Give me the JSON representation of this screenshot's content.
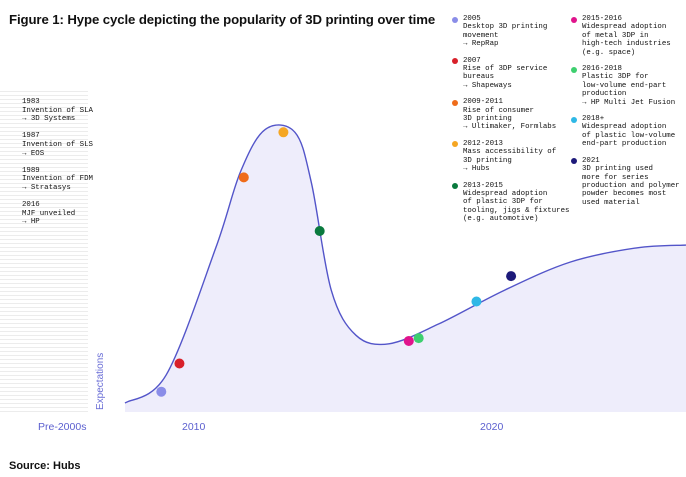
{
  "title": "Figure 1: Hype cycle depicting the popularity of 3D printing over time",
  "source": "Source: Hubs",
  "colors": {
    "curve": "#5355c9",
    "fill": "#ecebfb",
    "axis_text": "#5b5fcf"
  },
  "pre_2000s_events": [
    {
      "year": "1983",
      "event": "Invention of SLA",
      "company": "→ 3D Systems"
    },
    {
      "year": "1987",
      "event": "Invention of SLS",
      "company": "→ EOS"
    },
    {
      "year": "1989",
      "event": "Invention of FDM",
      "company": "→ Stratasys"
    },
    {
      "year": "2016",
      "event": "MJF unveiled",
      "company": "→ HP"
    }
  ],
  "chart_data": {
    "type": "line",
    "title": "Figure 1: Hype cycle depicting the popularity of 3D printing over time",
    "xlabel": "",
    "ylabel": "Expectations",
    "x_ticks": [
      "Pre-2000s",
      "2010",
      "2020"
    ],
    "grid": false,
    "curve_points": [
      {
        "x": 2002.0,
        "y": 0.0
      },
      {
        "x": 2004.5,
        "y": 0.1
      },
      {
        "x": 2007.5,
        "y": 0.55
      },
      {
        "x": 2009.0,
        "y": 0.82
      },
      {
        "x": 2010.5,
        "y": 0.97
      },
      {
        "x": 2012.3,
        "y": 0.96
      },
      {
        "x": 2013.3,
        "y": 0.78
      },
      {
        "x": 2014.5,
        "y": 0.4
      },
      {
        "x": 2016.0,
        "y": 0.24
      },
      {
        "x": 2018.0,
        "y": 0.21
      },
      {
        "x": 2021.0,
        "y": 0.28
      },
      {
        "x": 2025.0,
        "y": 0.4
      },
      {
        "x": 2029.0,
        "y": 0.5
      },
      {
        "x": 2033.0,
        "y": 0.55
      },
      {
        "x": 2036.0,
        "y": 0.56
      }
    ],
    "milestones": [
      {
        "x": 2004.2,
        "y": 0.04,
        "color": "#8a8de8",
        "period": "2005",
        "lines": [
          "Desktop 3D printing",
          "movement",
          "→ RepRap"
        ]
      },
      {
        "x": 2005.3,
        "y": 0.14,
        "color": "#d8202a",
        "period": "2007",
        "lines": [
          "Rise of 3DP service",
          "bureaus",
          "→ Shapeways"
        ]
      },
      {
        "x": 2009.2,
        "y": 0.8,
        "color": "#ef6c1a",
        "period": "2009-2011",
        "lines": [
          "Rise of consumer",
          "3D printing",
          "→ Ultimaker, Formlabs"
        ]
      },
      {
        "x": 2011.6,
        "y": 0.96,
        "color": "#f5a623",
        "period": "2012-2013",
        "lines": [
          "Mass accessibility of",
          "3D printing",
          "→ Hubs"
        ]
      },
      {
        "x": 2013.8,
        "y": 0.61,
        "color": "#0a7a3e",
        "period": "2013-2015",
        "lines": [
          "Widespread adoption",
          "of plastic 3DP for",
          "tooling, jigs & fixtures",
          "(e.g. automotive)"
        ]
      },
      {
        "x": 2019.2,
        "y": 0.22,
        "color": "#e0148c",
        "period": "2015-2016",
        "lines": [
          "Widespread adoption",
          "of metal 3DP in",
          "high-tech industries",
          "(e.g. space)"
        ]
      },
      {
        "x": 2019.8,
        "y": 0.23,
        "color": "#3ecf6f",
        "period": "2016-2018",
        "lines": [
          "Plastic 3DP for",
          "low-volume end-part",
          "production",
          "→ HP Multi Jet Fusion"
        ]
      },
      {
        "x": 2023.3,
        "y": 0.36,
        "color": "#2fb8e6",
        "period": "2018+",
        "lines": [
          "Widespread adoption",
          "of plastic low-volume",
          "end-part production"
        ]
      },
      {
        "x": 2025.4,
        "y": 0.45,
        "color": "#1d1a7a",
        "period": "2021",
        "lines": [
          "3D printing used",
          "more for series",
          "production and polymer",
          "powder becomes most",
          "used material"
        ]
      }
    ]
  }
}
